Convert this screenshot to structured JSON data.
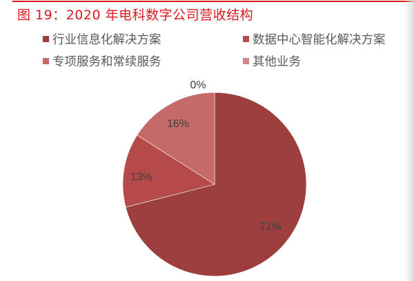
{
  "figure": {
    "title": "图 19：2020 年电科数字公司营收结构",
    "title_color": "#d9181f",
    "rule_color": "#d9181f"
  },
  "legend": {
    "items": [
      {
        "label": "行业信息化解决方案",
        "color": "#9c3e3e"
      },
      {
        "label": "数据中心智能化解决方案",
        "color": "#b54a4a"
      },
      {
        "label": "专项服务和常续服务",
        "color": "#c56a69"
      },
      {
        "label": "其他业务",
        "color": "#d48585"
      }
    ]
  },
  "chart_data": {
    "type": "pie",
    "title": "2020 年电科数字公司营收结构",
    "categories": [
      "行业信息化解决方案",
      "数据中心智能化解决方案",
      "专项服务和常续服务",
      "其他业务"
    ],
    "values": [
      71,
      13,
      16,
      0
    ],
    "labels": [
      "71%",
      "13%",
      "16%",
      "0%"
    ],
    "colors": [
      "#9c3e3e",
      "#b54a4a",
      "#c56a69",
      "#d48585"
    ],
    "start_angle_deg": 0,
    "direction": "clockwise",
    "legend_position": "top"
  },
  "labels": {
    "slice_0": "71%",
    "slice_1": "13%",
    "slice_2": "16%",
    "slice_3": "0%"
  }
}
